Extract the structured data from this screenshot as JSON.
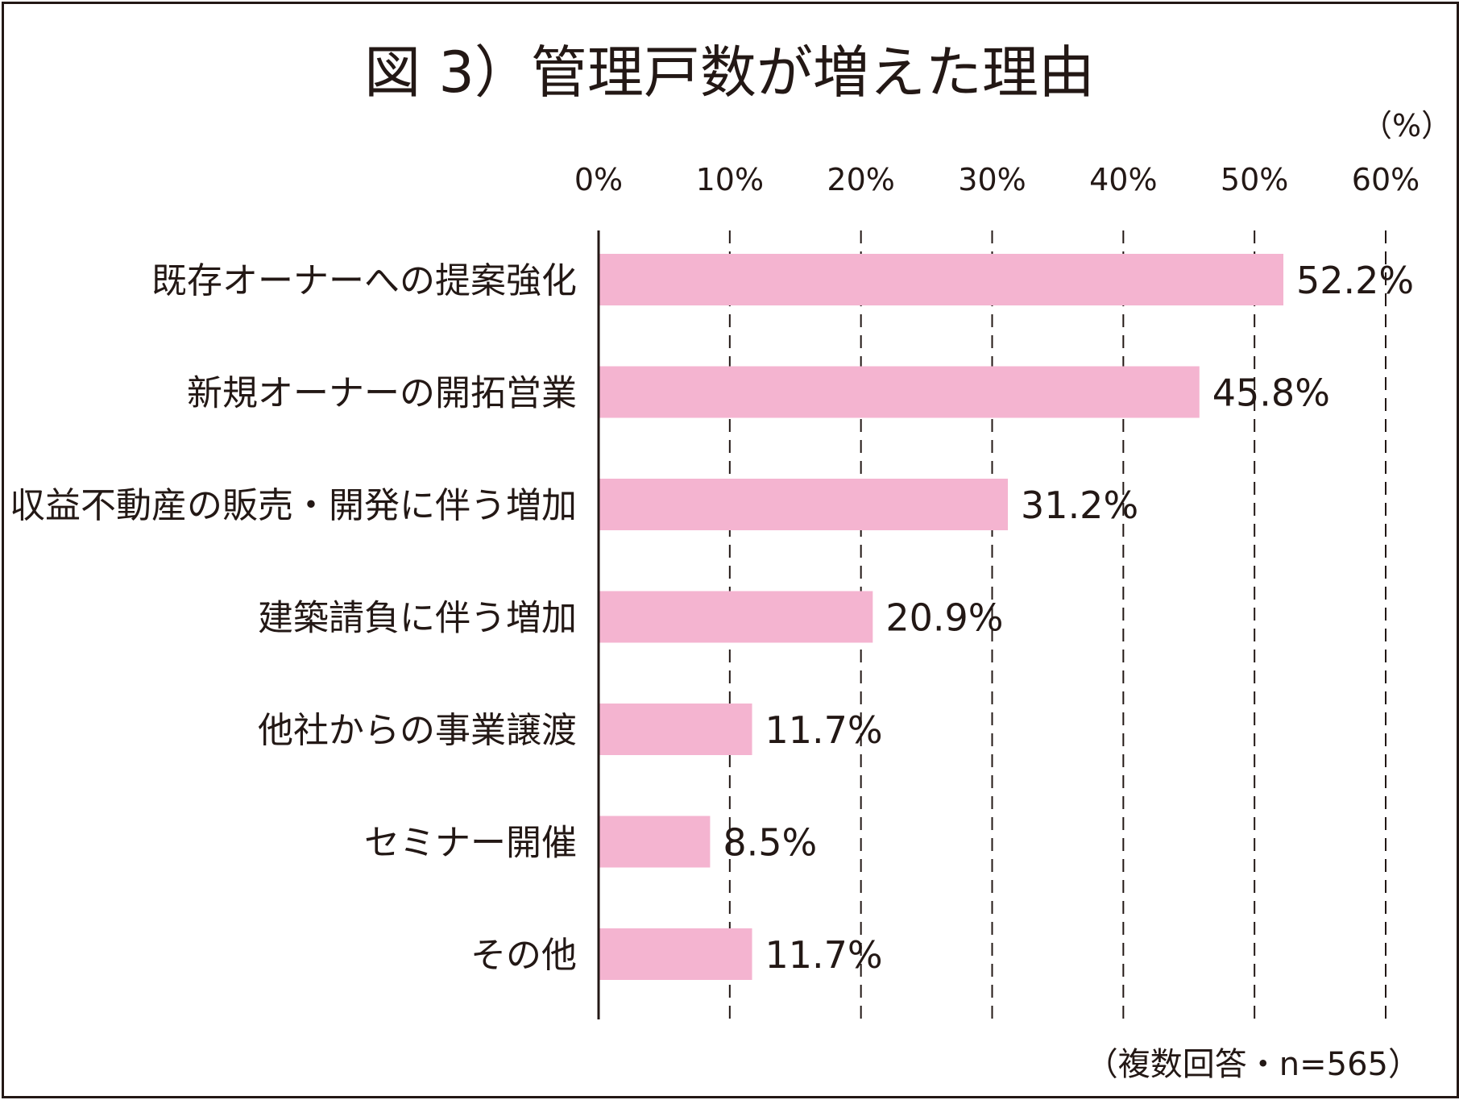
{
  "chart_data": {
    "type": "bar",
    "orientation": "horizontal",
    "title": "図 3）管理戸数が増えた理由",
    "unit_label": "（%）",
    "categories": [
      "既存オーナーへの提案強化",
      "新規オーナーの開拓営業",
      "収益不動産の販売・開発に伴う増加",
      "建築請負に伴う増加",
      "他社からの事業譲渡",
      "セミナー開催",
      "その他"
    ],
    "values": [
      52.2,
      45.8,
      31.2,
      20.9,
      11.7,
      8.5,
      11.7
    ],
    "value_labels": [
      "52.2%",
      "45.8%",
      "31.2%",
      "20.9%",
      "11.7%",
      "8.5%",
      "11.7%"
    ],
    "xlim": [
      0,
      60
    ],
    "ticks": [
      0,
      10,
      20,
      30,
      40,
      50,
      60
    ],
    "tick_labels": [
      "0%",
      "10%",
      "20%",
      "30%",
      "40%",
      "50%",
      "60%"
    ],
    "grid": "vertical dashed",
    "bar_color": "#f4b4d0",
    "note": "（複数回答・n=565）"
  }
}
